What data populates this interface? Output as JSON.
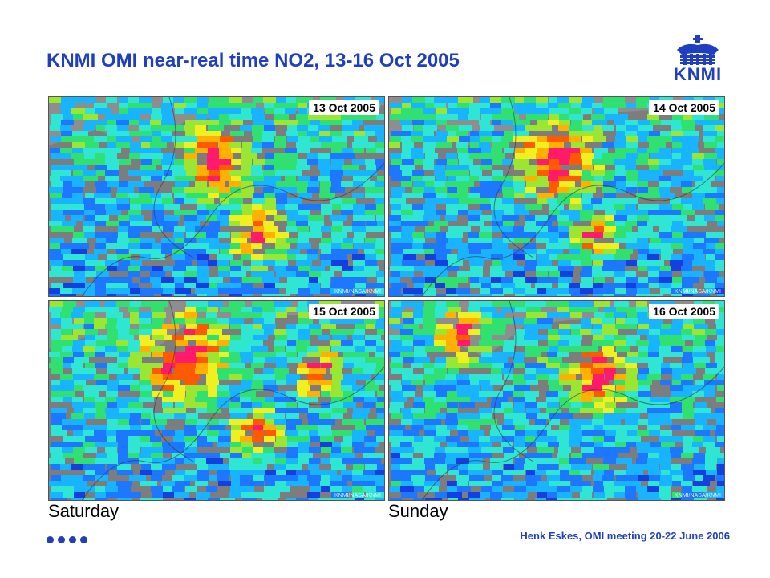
{
  "slide": {
    "title": "KNMI OMI near-real time NO2, 13-16 Oct 2005",
    "logo_text": "KNMI",
    "footer": "Henk Eskes, OMI meeting 20-22 June 2006",
    "day_labels": [
      "Saturday",
      "Sunday"
    ],
    "colors": {
      "brand_blue": "#1f3fbf",
      "land": "#8e8e8e",
      "sea": "#9a9a9a"
    }
  },
  "panels": [
    {
      "date": "13 Oct 2005",
      "credit": "KNMI/NASA/KNMI"
    },
    {
      "date": "14 Oct 2005",
      "credit": "KNMI/NASA/KNMI"
    },
    {
      "date": "15 Oct 2005",
      "credit": "KNMI/NASA/KNMI"
    },
    {
      "date": "16 Oct 2005",
      "credit": "KNMI/NASA/KNMI"
    }
  ]
}
